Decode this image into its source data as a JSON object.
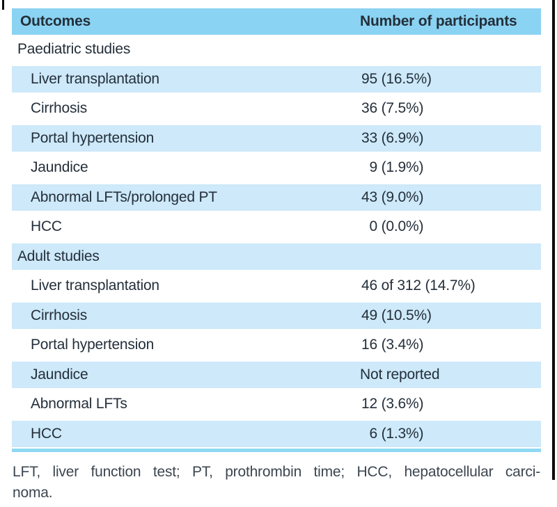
{
  "header": {
    "outcomes": "Outcomes",
    "participants": "Number of participants"
  },
  "rows": [
    {
      "type": "section",
      "label": "Paediatric studies",
      "num": "",
      "rest": ""
    },
    {
      "type": "item",
      "label": "Liver transplantation",
      "num": "95",
      "rest": " (16.5%)"
    },
    {
      "type": "item",
      "label": "Cirrhosis",
      "num": "36",
      "rest": " (7.5%)"
    },
    {
      "type": "item",
      "label": "Portal hypertension",
      "num": "33",
      "rest": " (6.9%)"
    },
    {
      "type": "item",
      "label": "Jaundice",
      "num": "9",
      "rest": " (1.9%)"
    },
    {
      "type": "item",
      "label": "Abnormal LFTs/prolonged PT",
      "num": "43",
      "rest": " (9.0%)"
    },
    {
      "type": "item",
      "label": "HCC",
      "num": "0",
      "rest": " (0.0%)"
    },
    {
      "type": "section",
      "label": "Adult studies",
      "num": "",
      "rest": ""
    },
    {
      "type": "item",
      "label": "Liver transplantation",
      "num": "46",
      "rest": " of 312 (14.7%)"
    },
    {
      "type": "item",
      "label": "Cirrhosis",
      "num": "49",
      "rest": " (10.5%)"
    },
    {
      "type": "item",
      "label": "Portal hypertension",
      "num": "16",
      "rest": " (3.4%)"
    },
    {
      "type": "item",
      "label": "Jaundice",
      "num": "Not reported",
      "rest": ""
    },
    {
      "type": "item",
      "label": "Abnormal LFTs",
      "num": "12",
      "rest": " (3.6%)"
    },
    {
      "type": "item",
      "label": "HCC",
      "num": "6",
      "rest": " (1.3%)"
    }
  ],
  "footnote": {
    "line1": "LFT, liver function test; PT, prothrombin time; HCC, hepatocellular carci-",
    "line2": "noma."
  },
  "colors": {
    "header_blue": "#8bd3f2",
    "row_blue": "#cde9fa",
    "rule_blue": "#8ed8f3",
    "text": "#242f3a",
    "footnote_text": "#3c4650"
  }
}
